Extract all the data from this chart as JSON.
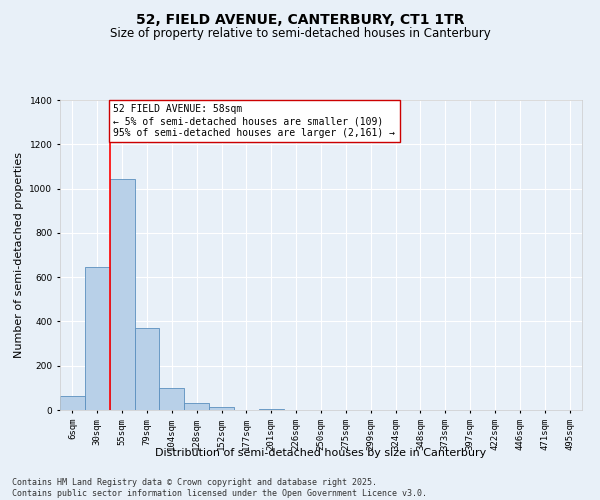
{
  "title": "52, FIELD AVENUE, CANTERBURY, CT1 1TR",
  "subtitle": "Size of property relative to semi-detached houses in Canterbury",
  "xlabel": "Distribution of semi-detached houses by size in Canterbury",
  "ylabel": "Number of semi-detached properties",
  "categories": [
    "6sqm",
    "30sqm",
    "55sqm",
    "79sqm",
    "104sqm",
    "128sqm",
    "152sqm",
    "177sqm",
    "201sqm",
    "226sqm",
    "250sqm",
    "275sqm",
    "299sqm",
    "324sqm",
    "348sqm",
    "373sqm",
    "397sqm",
    "422sqm",
    "446sqm",
    "471sqm",
    "495sqm"
  ],
  "values": [
    65,
    645,
    1045,
    370,
    100,
    30,
    12,
    0,
    5,
    0,
    0,
    0,
    0,
    0,
    0,
    0,
    0,
    0,
    0,
    0,
    0
  ],
  "bar_color": "#b8d0e8",
  "bar_edge_color": "#5a8fbf",
  "red_line_index": 2,
  "annotation_text": "52 FIELD AVENUE: 58sqm\n← 5% of semi-detached houses are smaller (109)\n95% of semi-detached houses are larger (2,161) →",
  "annotation_box_color": "#ffffff",
  "annotation_box_edge_color": "#cc0000",
  "ylim": [
    0,
    1400
  ],
  "yticks": [
    0,
    200,
    400,
    600,
    800,
    1000,
    1200,
    1400
  ],
  "background_color": "#e8f0f8",
  "footer_line1": "Contains HM Land Registry data © Crown copyright and database right 2025.",
  "footer_line2": "Contains public sector information licensed under the Open Government Licence v3.0.",
  "title_fontsize": 10,
  "subtitle_fontsize": 8.5,
  "axis_label_fontsize": 8,
  "tick_fontsize": 6.5,
  "annotation_fontsize": 7,
  "footer_fontsize": 6
}
